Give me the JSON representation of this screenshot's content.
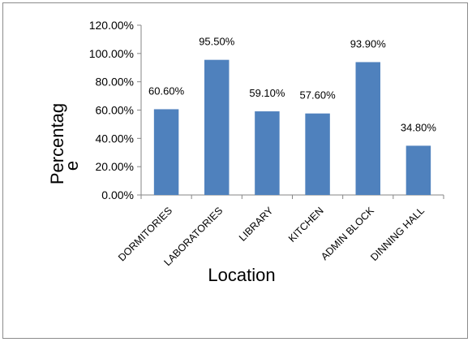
{
  "chart_data": {
    "type": "bar",
    "title": "",
    "xlabel": "Location",
    "ylabel_lines": [
      "Percentag",
      "e"
    ],
    "categories": [
      "DORMITORIES",
      "LABORATORIES",
      "LIBRARY",
      "KITCHEN",
      "ADMIN BLOCK",
      "DINNING HALL"
    ],
    "values": [
      60.6,
      95.5,
      59.1,
      57.6,
      93.9,
      34.8
    ],
    "value_labels": [
      "60.60%",
      "95.50%",
      "59.10%",
      "57.60%",
      "93.90%",
      "34.80%"
    ],
    "ylim": [
      0,
      120
    ],
    "yticks": [
      0,
      20,
      40,
      60,
      80,
      100,
      120
    ],
    "ytick_labels": [
      "0.00%",
      "20.00%",
      "40.00%",
      "60.00%",
      "80.00%",
      "100.00%",
      "120.00%"
    ],
    "grid": false,
    "legend": "none",
    "bar_color": "#4f81bd"
  }
}
